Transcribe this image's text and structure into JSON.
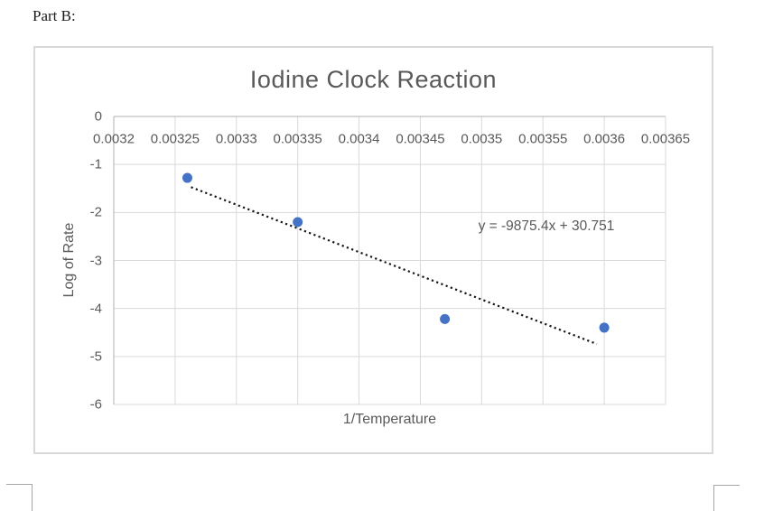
{
  "page": {
    "part_label": "Part B:"
  },
  "chart_data": {
    "type": "scatter",
    "title": "Iodine Clock Reaction",
    "xlabel": "1/Temperature",
    "ylabel": "Log of Rate",
    "xlim": [
      0.0032,
      0.00365
    ],
    "ylim": [
      -6,
      0
    ],
    "x_ticks": [
      "0.0032",
      "0.00325",
      "0.0033",
      "0.00335",
      "0.0034",
      "0.00345",
      "0.0035",
      "0.00355",
      "0.0036",
      "0.00365"
    ],
    "y_ticks": [
      "0",
      "-1",
      "-2",
      "-3",
      "-4",
      "-5",
      "-6"
    ],
    "grid": true,
    "legend": "none",
    "points": [
      {
        "x": 0.00326,
        "y": -1.28
      },
      {
        "x": 0.00335,
        "y": -2.2
      },
      {
        "x": 0.00347,
        "y": -4.22
      },
      {
        "x": 0.0036,
        "y": -4.4
      }
    ],
    "trendline": {
      "equation_label": "y = -9875.4x + 30.751",
      "slope": -9875.4,
      "intercept": 30.751,
      "x_start": 0.003263,
      "x_end": 0.003594,
      "style": "dotted"
    },
    "colors": {
      "point": "#4472c4",
      "trendline": "#161616",
      "gridline": "#d9d9d9",
      "axis_line": "#bfbfbf",
      "chart_border": "#d9d9d9",
      "text": "#595959"
    }
  }
}
